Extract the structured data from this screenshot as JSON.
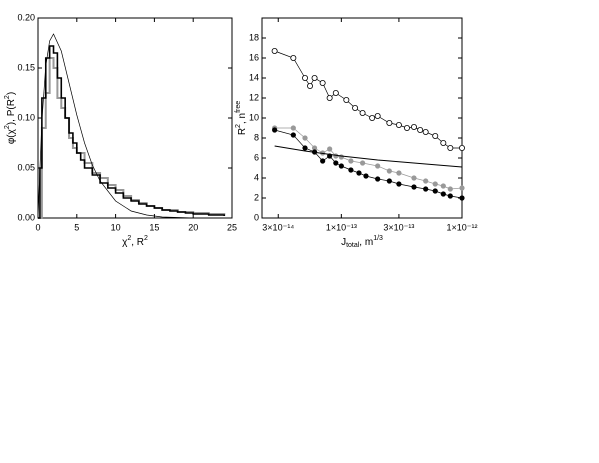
{
  "chart_data": [
    {
      "type": "line",
      "ylabel": [
        "φ(χ",
        "2",
        "), P(R",
        "2",
        ")"
      ],
      "xlabel": [
        "χ",
        "2",
        ", R",
        "2"
      ],
      "xlim": [
        0,
        25
      ],
      "xticks": [
        0,
        5,
        10,
        15,
        20,
        25
      ],
      "ylim": [
        0,
        0.2
      ],
      "yticks": [
        {
          "value": 0,
          "label": "0.00"
        },
        0.05,
        {
          "value": 0.1,
          "label": "0.10"
        },
        0.15,
        {
          "value": 0.2,
          "label": "0.20"
        }
      ],
      "series": [
        {
          "color": "#999999",
          "step": true,
          "marker": "none",
          "width": 2,
          "x": [
            0,
            0.5,
            1,
            1.5,
            2,
            2.5,
            3,
            3.5,
            4,
            4.5,
            5,
            6,
            7,
            8,
            9,
            10,
            11,
            12,
            13,
            14,
            15,
            16,
            18,
            20,
            22,
            24
          ],
          "values": [
            0,
            0.09,
            0.125,
            0.16,
            0.15,
            0.12,
            0.11,
            0.1,
            0.08,
            0.07,
            0.065,
            0.055,
            0.045,
            0.04,
            0.033,
            0.028,
            0.022,
            0.018,
            0.015,
            0.012,
            0.01,
            0.008,
            0.006,
            0.005,
            0.004,
            0.002
          ]
        },
        {
          "color": "#000000",
          "step": true,
          "marker": "none",
          "width": 1.6,
          "x": [
            0,
            0.25,
            0.5,
            1,
            1.5,
            2,
            2.5,
            3,
            3.5,
            4,
            4.5,
            5,
            5.5,
            6,
            7,
            8,
            9,
            10,
            11,
            12,
            13,
            14,
            15,
            16,
            17,
            18,
            19,
            20,
            22,
            24
          ],
          "values": [
            0,
            0.05,
            0.12,
            0.16,
            0.172,
            0.165,
            0.14,
            0.12,
            0.1,
            0.085,
            0.075,
            0.065,
            0.058,
            0.05,
            0.043,
            0.035,
            0.03,
            0.025,
            0.02,
            0.017,
            0.014,
            0.012,
            0.01,
            0.008,
            0.007,
            0.006,
            0.005,
            0.004,
            0.003,
            0.002
          ]
        },
        {
          "color": "#000000",
          "step": false,
          "marker": "none",
          "width": 0.7,
          "x": [
            0,
            0.5,
            1,
            1.5,
            2,
            3,
            4,
            5,
            6,
            7,
            8,
            10,
            12,
            14,
            16,
            20,
            25
          ],
          "values": [
            0,
            0.097,
            0.152,
            0.177,
            0.184,
            0.167,
            0.135,
            0.103,
            0.075,
            0.053,
            0.037,
            0.017,
            0.007,
            0.003,
            0.001,
            0,
            0
          ]
        }
      ]
    },
    {
      "type": "line",
      "xscale": "log",
      "ylabel": [
        "R",
        "2",
        ", n",
        "free"
      ],
      "xlabel": [
        "J",
        "total",
        ", m",
        "1/3"
      ],
      "xlim": [
        2.2e-14,
        1e-12
      ],
      "xticks": [
        {
          "value": 3e-14,
          "label": "3×10⁻¹⁴"
        },
        {
          "value": 1e-13,
          "label": "1×10⁻¹³"
        },
        {
          "value": 3e-13,
          "label": "3×10⁻¹³"
        },
        {
          "value": 1e-12,
          "label": "1×10⁻¹²"
        }
      ],
      "ylim": [
        0,
        20
      ],
      "yticks": [
        0,
        2,
        4,
        6,
        8,
        10,
        12,
        14,
        16,
        18
      ],
      "series": [
        {
          "color": "#000000",
          "step": false,
          "marker": "open",
          "width": 0.7,
          "x": [
            2.8e-14,
            4e-14,
            5e-14,
            5.5e-14,
            6e-14,
            7e-14,
            8e-14,
            9e-14,
            1.1e-13,
            1.3e-13,
            1.5e-13,
            1.8e-13,
            2e-13,
            2.5e-13,
            3e-13,
            3.5e-13,
            4e-13,
            4.5e-13,
            5e-13,
            6e-13,
            7e-13,
            8e-13,
            1e-12
          ],
          "values": [
            16.7,
            16,
            14,
            13.2,
            14,
            13.5,
            12,
            12.5,
            11.8,
            11,
            10.5,
            10,
            10.2,
            9.5,
            9.3,
            9,
            9.1,
            8.8,
            8.6,
            8.2,
            7.5,
            7,
            7
          ]
        },
        {
          "color": "#999999",
          "step": false,
          "marker": "filled",
          "width": 0.7,
          "x": [
            2.8e-14,
            4e-14,
            5e-14,
            6e-14,
            7e-14,
            8e-14,
            9e-14,
            1e-13,
            1.2e-13,
            1.5e-13,
            2e-13,
            2.5e-13,
            3e-13,
            4e-13,
            5e-13,
            6e-13,
            7e-13,
            8e-13,
            1e-12
          ],
          "values": [
            9,
            9,
            8,
            7,
            6.5,
            6.9,
            6.2,
            6.1,
            5.7,
            5.5,
            5.2,
            4.7,
            4.5,
            4,
            3.7,
            3.4,
            3.2,
            2.9,
            3
          ]
        },
        {
          "color": "#000000",
          "step": false,
          "marker": "filled",
          "width": 0.7,
          "x": [
            2.8e-14,
            4e-14,
            5e-14,
            6e-14,
            7e-14,
            8e-14,
            9e-14,
            1e-13,
            1.2e-13,
            1.4e-13,
            1.6e-13,
            2e-13,
            2.5e-13,
            3e-13,
            4e-13,
            5e-13,
            6e-13,
            7e-13,
            8e-13,
            1e-12
          ],
          "values": [
            8.8,
            8.3,
            7,
            6.6,
            5.7,
            6.2,
            5.5,
            5.2,
            4.8,
            4.5,
            4.2,
            3.9,
            3.7,
            3.4,
            3.1,
            2.9,
            2.7,
            2.4,
            2.2,
            2
          ]
        },
        {
          "color": "#000000",
          "step": false,
          "marker": "none",
          "width": 1,
          "x": [
            2.8e-14,
            5e-14,
            1e-13,
            2e-13,
            5e-13,
            1e-12
          ],
          "values": [
            7.2,
            6.7,
            6.2,
            5.8,
            5.4,
            5.1
          ]
        }
      ]
    }
  ]
}
